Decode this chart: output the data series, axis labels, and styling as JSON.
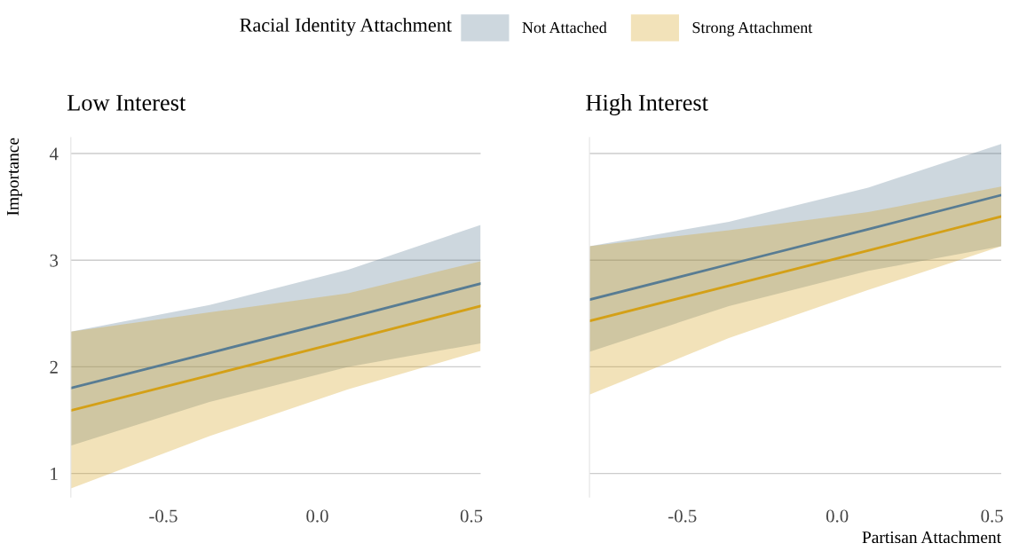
{
  "chart_data": [
    {
      "type": "line",
      "title": "Low Interest",
      "ylabel": "Importance",
      "legend_title": "Racial Identity Attachment",
      "legend": "top",
      "x": [
        -0.8,
        -0.35,
        0.1,
        0.53
      ],
      "series": [
        {
          "name": "Not Attached",
          "color": "#587c93",
          "values": [
            1.8,
            2.13,
            2.46,
            2.78
          ],
          "lower": [
            1.26,
            1.67,
            2.0,
            2.22
          ],
          "upper": [
            2.33,
            2.58,
            2.91,
            3.33
          ]
        },
        {
          "name": "Strong Attachment",
          "color": "#d4a017",
          "values": [
            1.59,
            1.92,
            2.25,
            2.57
          ],
          "lower": [
            0.86,
            1.35,
            1.79,
            2.15
          ],
          "upper": [
            2.33,
            2.51,
            2.69,
            2.99
          ]
        }
      ],
      "xlim": [
        -0.8,
        0.53
      ],
      "ylim": [
        0.78,
        4.15
      ],
      "xticks": [
        {
          "value": -0.5,
          "label": "-0.5"
        },
        {
          "value": 0,
          "label": "0.0"
        },
        {
          "value": 0.5,
          "label": "0.5"
        }
      ],
      "yticks": [
        1,
        2,
        3,
        4
      ],
      "grid": "y"
    },
    {
      "type": "line",
      "title": "High Interest",
      "xlabel": "Partisan Attachment",
      "tick_labels": "x",
      "x": [
        -0.8,
        -0.35,
        0.1,
        0.53
      ],
      "series": [
        {
          "color": "#587c93",
          "values": [
            2.63,
            2.96,
            3.29,
            3.61
          ],
          "lower": [
            2.14,
            2.57,
            2.9,
            3.13
          ],
          "upper": [
            3.13,
            3.36,
            3.68,
            4.09
          ]
        },
        {
          "color": "#d4a017",
          "values": [
            2.43,
            2.76,
            3.09,
            3.41
          ],
          "lower": [
            1.74,
            2.27,
            2.72,
            3.13
          ],
          "upper": [
            3.13,
            3.28,
            3.45,
            3.69
          ]
        }
      ],
      "xlim": [
        -0.8,
        0.53
      ],
      "ylim": [
        0.78,
        4.15
      ],
      "xticks": [
        {
          "value": -0.5,
          "label": "-0.5"
        },
        {
          "value": 0,
          "label": "0.0"
        },
        {
          "value": 0.5,
          "label": "0.5"
        }
      ],
      "yticks": [
        1,
        2,
        3,
        4
      ],
      "grid": "y"
    }
  ]
}
